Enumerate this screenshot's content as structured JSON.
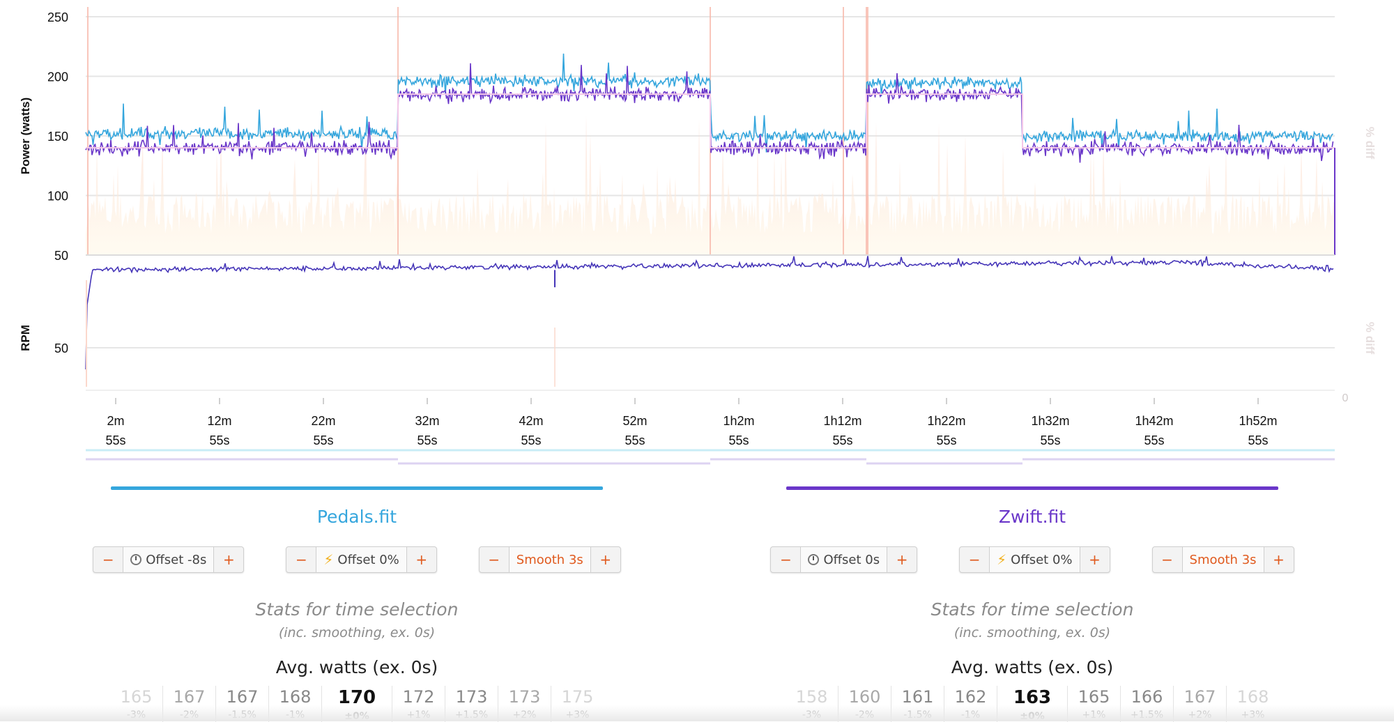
{
  "charts": {
    "power": {
      "ylabel": "Power (watts)",
      "right_label": "% diff",
      "yticks": [
        250,
        200,
        150,
        100,
        50
      ],
      "ylim": [
        50,
        250
      ]
    },
    "rpm": {
      "ylabel": "RPM",
      "right_label": "% diff",
      "yticks": [
        50
      ],
      "right_ticks": [
        "0"
      ]
    },
    "xaxis": {
      "ticks": [
        {
          "l1": "2m",
          "l2": "55s"
        },
        {
          "l1": "12m",
          "l2": "55s"
        },
        {
          "l1": "22m",
          "l2": "55s"
        },
        {
          "l1": "32m",
          "l2": "55s"
        },
        {
          "l1": "42m",
          "l2": "55s"
        },
        {
          "l1": "52m",
          "l2": "55s"
        },
        {
          "l1": "1h2m",
          "l2": "55s"
        },
        {
          "l1": "1h12m",
          "l2": "55s"
        },
        {
          "l1": "1h22m",
          "l2": "55s"
        },
        {
          "l1": "1h32m",
          "l2": "55s"
        },
        {
          "l1": "1h42m",
          "l2": "55s"
        },
        {
          "l1": "1h52m",
          "l2": "55s"
        }
      ]
    },
    "colors": {
      "pedals": "#35a6dd",
      "zwift": "#6a37c9",
      "diff": "#fbd8cc"
    }
  },
  "chart_data": [
    {
      "type": "line",
      "ylabel": "Power (watts)",
      "ylim": [
        50,
        250
      ],
      "x_unit": "minutes",
      "segments_minutes": [
        0,
        30,
        60,
        75,
        90,
        120
      ],
      "series": [
        {
          "name": "Pedals.fit",
          "segment_levels": [
            152,
            196,
            150,
            194,
            150
          ]
        },
        {
          "name": "Zwift.fit",
          "segment_levels": [
            140,
            185,
            140,
            185,
            140
          ]
        }
      ]
    },
    {
      "type": "line",
      "ylabel": "RPM",
      "x_unit": "minutes",
      "series": [
        {
          "name": "Zwift.fit",
          "approx_level": 86
        }
      ]
    }
  ],
  "panels": [
    {
      "title": "Pedals.fit",
      "color": "#35a6dd",
      "controls": [
        {
          "minus": "−",
          "icon": "clock-icon",
          "label": "Offset -8s",
          "plus": "+"
        },
        {
          "minus": "−",
          "icon": "bolt-icon",
          "label": "Offset 0%",
          "plus": "+"
        },
        {
          "minus": "−",
          "icon": "",
          "label": "Smooth 3s",
          "plus": "+"
        }
      ],
      "stats_title": "Stats for time selection",
      "stats_sub": "(inc. smoothing, ex. 0s)",
      "avg_title": "Avg. watts (ex. 0s)",
      "avg_values": [
        {
          "v": "165",
          "p": "-3%"
        },
        {
          "v": "167",
          "p": "-2%"
        },
        {
          "v": "167",
          "p": "-1.5%"
        },
        {
          "v": "168",
          "p": "-1%"
        },
        {
          "v": "170",
          "p": "±0%"
        },
        {
          "v": "172",
          "p": "+1%"
        },
        {
          "v": "173",
          "p": "+1.5%"
        },
        {
          "v": "173",
          "p": "+2%"
        },
        {
          "v": "175",
          "p": "+3%"
        }
      ]
    },
    {
      "title": "Zwift.fit",
      "color": "#6a37c9",
      "controls": [
        {
          "minus": "−",
          "icon": "clock-icon",
          "label": "Offset 0s",
          "plus": "+"
        },
        {
          "minus": "−",
          "icon": "bolt-icon",
          "label": "Offset 0%",
          "plus": "+"
        },
        {
          "minus": "−",
          "icon": "",
          "label": "Smooth 3s",
          "plus": "+"
        }
      ],
      "stats_title": "Stats for time selection",
      "stats_sub": "(inc. smoothing, ex. 0s)",
      "avg_title": "Avg. watts (ex. 0s)",
      "avg_values": [
        {
          "v": "158",
          "p": "-3%"
        },
        {
          "v": "160",
          "p": "-2%"
        },
        {
          "v": "161",
          "p": "-1.5%"
        },
        {
          "v": "162",
          "p": "-1%"
        },
        {
          "v": "163",
          "p": "±0%"
        },
        {
          "v": "165",
          "p": "+1%"
        },
        {
          "v": "166",
          "p": "+1.5%"
        },
        {
          "v": "167",
          "p": "+2%"
        },
        {
          "v": "168",
          "p": "+3%"
        }
      ]
    }
  ]
}
